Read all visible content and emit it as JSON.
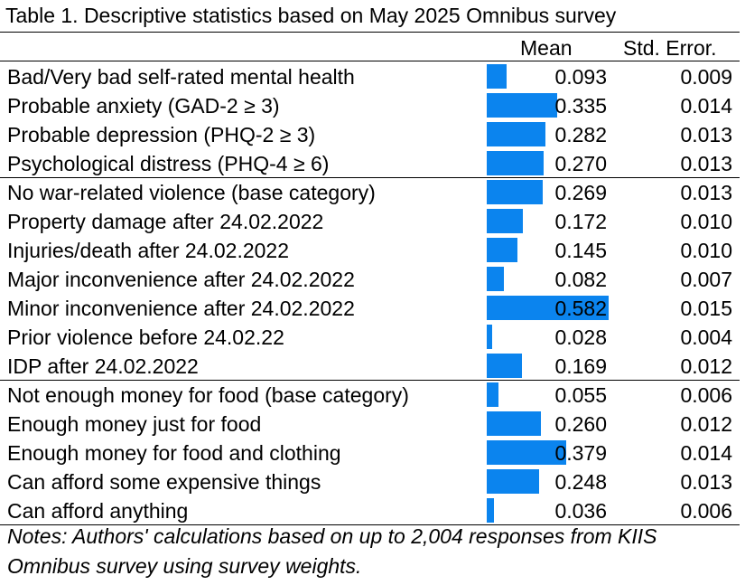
{
  "title": "Table 1. Descriptive statistics based on May 2025 Omnibus survey",
  "headers": {
    "mean": "Mean",
    "se": "Std. Error."
  },
  "bar_color": "#0b84ee",
  "rows": [
    {
      "label": "Bad/Very bad self-rated mental health",
      "mean": "0.093",
      "se": "0.009",
      "value": 0.093
    },
    {
      "label": "Probable anxiety (GAD-2 ≥ 3)",
      "mean": "0.335",
      "se": "0.014",
      "value": 0.335
    },
    {
      "label": "Probable depression (PHQ-2 ≥ 3)",
      "mean": "0.282",
      "se": "0.013",
      "value": 0.282
    },
    {
      "label": "Psychological distress (PHQ-4 ≥ 6)",
      "mean": "0.270",
      "se": "0.013",
      "value": 0.27
    },
    {
      "label": "No war-related violence (base category)",
      "mean": "0.269",
      "se": "0.013",
      "value": 0.269
    },
    {
      "label": "Property damage after 24.02.2022",
      "mean": "0.172",
      "se": "0.010",
      "value": 0.172
    },
    {
      "label": "Injuries/death after 24.02.2022",
      "mean": "0.145",
      "se": "0.010",
      "value": 0.145
    },
    {
      "label": "Major inconvenience after 24.02.2022",
      "mean": "0.082",
      "se": "0.007",
      "value": 0.082
    },
    {
      "label": "Minor inconvenience after 24.02.2022",
      "mean": "0.582",
      "se": "0.015",
      "value": 0.582
    },
    {
      "label": "Prior violence before 24.02.22",
      "mean": "0.028",
      "se": "0.004",
      "value": 0.028
    },
    {
      "label": "IDP after 24.02.2022",
      "mean": "0.169",
      "se": "0.012",
      "value": 0.169
    },
    {
      "label": "Not enough money for food (base category)",
      "mean": "0.055",
      "se": "0.006",
      "value": 0.055
    },
    {
      "label": "Enough money just for food",
      "mean": "0.260",
      "se": "0.012",
      "value": 0.26
    },
    {
      "label": "Enough money for food and clothing",
      "mean": "0.379",
      "se": "0.014",
      "value": 0.379
    },
    {
      "label": "Can afford some expensive things",
      "mean": "0.248",
      "se": "0.013",
      "value": 0.248
    },
    {
      "label": "Can afford anything",
      "mean": "0.036",
      "se": "0.006",
      "value": 0.036
    }
  ],
  "notes": "Notes: Authors' calculations based on up to 2,004 responses from KIIS Omnibus survey using survey weights."
}
